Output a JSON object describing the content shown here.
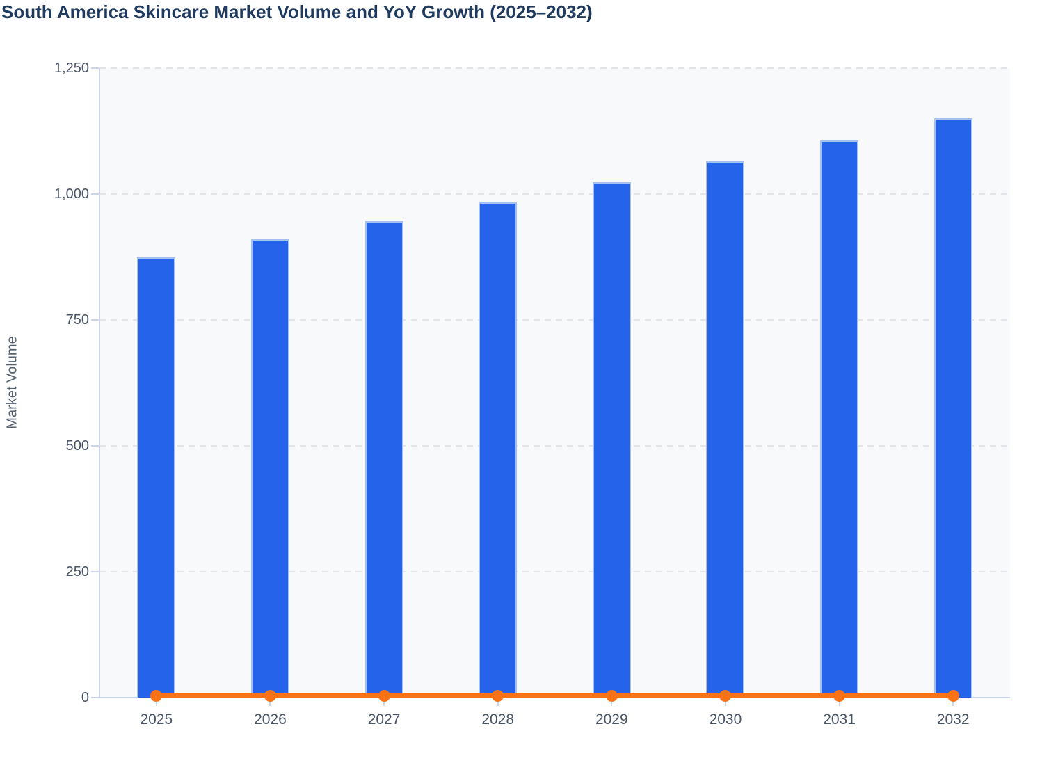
{
  "title": "South America Skincare Market Volume and YoY Growth (2025–2032)",
  "y_axis": {
    "label": "Market Volume",
    "tick_values": [
      0,
      250,
      500,
      750,
      1000,
      1250
    ],
    "tick_labels": [
      "0",
      "250",
      "500",
      "750",
      "1,000",
      "1,250"
    ]
  },
  "x_axis": {
    "tick_labels": [
      "2025",
      "2026",
      "2027",
      "2028",
      "2029",
      "2030",
      "2031",
      "2032"
    ]
  },
  "chart_data": {
    "type": "bar",
    "title": "South America Skincare Market Volume and YoY Growth (2025–2032)",
    "xlabel": "",
    "ylabel": "Market Volume",
    "ylim": [
      0,
      1250
    ],
    "grid": "horizontal-dashed",
    "legend_position": "none",
    "categories": [
      "2025",
      "2026",
      "2027",
      "2028",
      "2029",
      "2030",
      "2031",
      "2032"
    ],
    "series": [
      {
        "name": "Market Volume",
        "chart_type": "bar",
        "color": "#2563eb",
        "values": [
          875,
          910,
          946,
          984,
          1024,
          1065,
          1107,
          1151
        ]
      },
      {
        "name": "YoY Growth",
        "chart_type": "line",
        "color": "#f97316",
        "values": [
          4,
          4,
          4,
          4,
          4,
          4,
          4,
          4
        ]
      }
    ]
  },
  "colors": {
    "bar_fill": "#2563eb",
    "bar_border": "#a6c0f2",
    "line": "#f97316",
    "plot_background": "#f8f9fb",
    "gridline": "#e2e4ea",
    "axis_line": "#ccd4e8",
    "tick_text": "#4a5568",
    "title_text": "#1e3a5f",
    "axis_title_text": "#55606f"
  }
}
